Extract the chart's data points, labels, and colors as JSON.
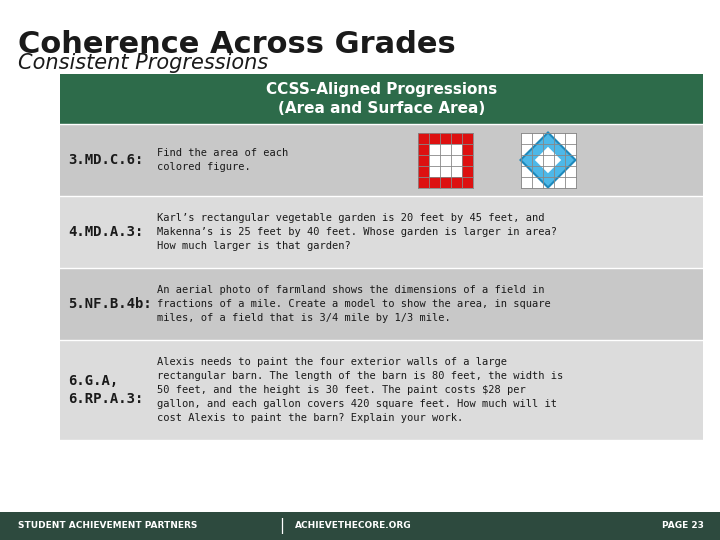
{
  "title_line1": "Coherence Across Grades",
  "title_line2": "Consistent Progressions",
  "table_header": "CCSS-Aligned Progressions\n(Area and Surface Area)",
  "header_bg": "#2d6b4a",
  "header_text_color": "#ffffff",
  "row_bg_dark": "#c8c8c8",
  "row_bg_light": "#dcdcdc",
  "footer_bg": "#2d4a3e",
  "footer_text": "STUDENT ACHIEVEMENT PARTNERS",
  "footer_text2": "ACHIEVETHECORE.ORG",
  "page_text": "PAGE 23",
  "rows": [
    {
      "label": "3.MD.C.6:",
      "text": "Find the area of each\ncolored figure.",
      "has_image": true
    },
    {
      "label": "4.MD.A.3:",
      "text": "Karl’s rectangular vegetable garden is 20 feet by 45 feet, and\nMakenna’s is 25 feet by 40 feet. Whose garden is larger in area?\nHow much larger is that garden?",
      "has_image": false
    },
    {
      "label": "5.NF.B.4b:",
      "text": "An aerial photo of farmland shows the dimensions of a field in\nfractions of a mile. Create a model to show the area, in square\nmiles, of a field that is 3/4 mile by 1/3 mile.",
      "has_image": false
    },
    {
      "label": "6.G.A,\n6.RP.A.3:",
      "text": "Alexis needs to paint the four exterior walls of a large\nrectangular barn. The length of the barn is 80 feet, the width is\n50 feet, and the height is 30 feet. The paint costs $28 per\ngallon, and each gallon covers 420 square feet. How much will it\ncost Alexis to paint the barn? Explain your work.",
      "has_image": false
    }
  ],
  "bg_color": "#ffffff",
  "title_color": "#1a1a1a",
  "label_color": "#1a1a1a",
  "text_color": "#1a1a1a",
  "red_color": "#dd1111",
  "blue_color": "#4db8e8",
  "grid_color": "#aaaaaa"
}
